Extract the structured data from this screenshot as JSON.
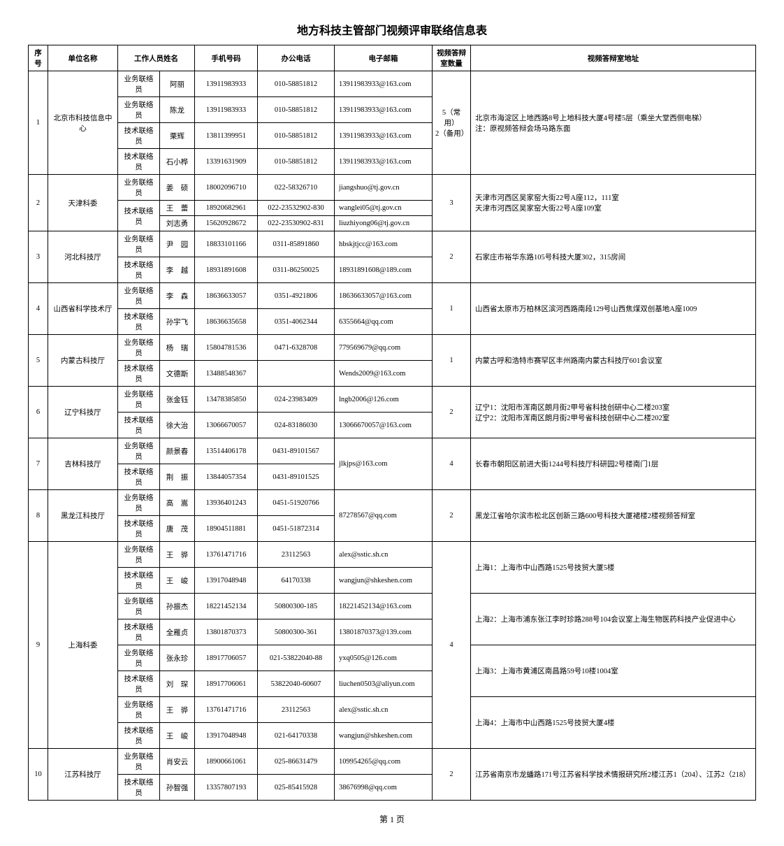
{
  "title": "地方科技主管部门视频评审联络信息表",
  "footer": "第 1 页",
  "columns": [
    "序号",
    "单位名称",
    "工作人员姓名",
    "",
    "手机号码",
    "办公电话",
    "电子邮箱",
    "视频答辩室数量",
    "视频答辩室地址"
  ],
  "col_role_sub": "",
  "rows": [
    {
      "seq": "1",
      "unit": "北京市科技信息中心",
      "qty": "5（常用）\n2（备用）",
      "addr": "北京市海淀区上地西路8号上地科技大厦4号楼5层（乘坐大堂西侧电梯）\n注：原视频答辩会场马路东面",
      "contacts": [
        {
          "role": "业务联络员",
          "name": "阿丽",
          "mobile": "13911983933",
          "phone": "010-58851812",
          "email": "13911983933@163.com"
        },
        {
          "role": "业务联络员",
          "name": "陈龙",
          "mobile": "13911983933",
          "phone": "010-58851812",
          "email": "13911983933@163.com"
        },
        {
          "role": "技术联络员",
          "name": "栗辉",
          "mobile": "13811399951",
          "phone": "010-58851812",
          "email": "13911983933@163.com"
        },
        {
          "role": "技术联络员",
          "name": "石小桦",
          "mobile": "13391631909",
          "phone": "010-58851812",
          "email": "13911983933@163.com"
        }
      ]
    },
    {
      "seq": "2",
      "unit": "天津科委",
      "qty": "3",
      "addr": "天津市河西区吴家窑大街22号A座112，111室\n天津市河西区吴家窑大街22号A座109室",
      "contacts": [
        {
          "role": "业务联络员",
          "name": "姜　硕",
          "mobile": "18002096710",
          "phone": "022-58326710",
          "email": "jiangshuo@tj.gov.cn"
        },
        {
          "role": "技术联络员",
          "name": "王　蕾",
          "mobile": "18920682961",
          "phone": "022-23532902-830",
          "email": "wanglei05@tj.gov.cn",
          "role_span": 2
        },
        {
          "role": "",
          "name": "刘志勇",
          "mobile": "15620928672",
          "phone": "022-23530902-831",
          "email": "liuzhiyong06@tj.gov.cn"
        }
      ]
    },
    {
      "seq": "3",
      "unit": "河北科技厅",
      "qty": "2",
      "addr": "石家庄市裕华东路105号科技大厦302，315房间",
      "contacts": [
        {
          "role": "业务联络员",
          "name": "尹　园",
          "mobile": "18833101166",
          "phone": "0311-85891860",
          "email": "hbskjtjcc@163.com"
        },
        {
          "role": "技术联络员",
          "name": "李　越",
          "mobile": "18931891608",
          "phone": "0311-86250025",
          "email": "18931891608@189.com"
        }
      ]
    },
    {
      "seq": "4",
      "unit": "山西省科学技术厅",
      "qty": "1",
      "addr": "山西省太原市万柏林区滨河西路南段129号山西焦煤双创基地A座1009",
      "contacts": [
        {
          "role": "业务联络员",
          "name": "李　森",
          "mobile": "18636633057",
          "phone": "0351-4921806",
          "email": "18636633057@163.com"
        },
        {
          "role": "技术联络员",
          "name": "孙宇飞",
          "mobile": "18636635658",
          "phone": "0351-4062344",
          "email": "6355664@qq.com"
        }
      ]
    },
    {
      "seq": "5",
      "unit": "内蒙古科技厅",
      "qty": "1",
      "addr": "内蒙古呼和浩特市赛罕区丰州路南内蒙古科技厅601会议室",
      "contacts": [
        {
          "role": "业务联络员",
          "name": "杨　瑞",
          "mobile": "15804781536",
          "phone": "0471-6328708",
          "email": "779569679@qq.com"
        },
        {
          "role": "技术联络员",
          "name": "文德斯",
          "mobile": "13488548367",
          "phone": "",
          "email": "Wends2009@163.com"
        }
      ]
    },
    {
      "seq": "6",
      "unit": "辽宁科技厅",
      "qty": "2",
      "addr": "辽宁1：沈阳市浑南区朗月街2甲号省科技创研中心二楼203室\n辽宁2：沈阳市浑南区朗月街2甲号省科技创研中心二楼202室",
      "contacts": [
        {
          "role": "业务联络员",
          "name": "张金钰",
          "mobile": "13478385850",
          "phone": "024-23983409",
          "email": "lngb2006@126.com"
        },
        {
          "role": "技术联络员",
          "name": "徐大治",
          "mobile": "13066670057",
          "phone": "024-83186030",
          "email": "13066670057@163.com"
        }
      ]
    },
    {
      "seq": "7",
      "unit": "吉林科技厅",
      "qty": "4",
      "addr": "长春市朝阳区前进大街1244号科技厅科研园2号楼南门1层",
      "contacts": [
        {
          "role": "业务联络员",
          "name": "颜景春",
          "mobile": "13514406178",
          "phone": "0431-89101567",
          "email": "jlkjps@163.com",
          "email_span": 2
        },
        {
          "role": "技术联络员",
          "name": "荆　振",
          "mobile": "13844057354",
          "phone": "0431-89101525",
          "email": ""
        }
      ]
    },
    {
      "seq": "8",
      "unit": "黑龙江科技厅",
      "qty": "2",
      "addr": "黑龙江省哈尔滨市松北区创新三路600号科技大厦裙楼2楼视频答辩室",
      "contacts": [
        {
          "role": "业务联络员",
          "name": "高　嵩",
          "mobile": "13936401243",
          "phone": "0451-51920766",
          "email": "87278567@qq.com",
          "email_span": 2
        },
        {
          "role": "技术联络员",
          "name": "唐　茂",
          "mobile": "18904511881",
          "phone": "0451-51872314",
          "email": ""
        }
      ]
    },
    {
      "seq": "9",
      "unit": "上海科委",
      "qty": "4",
      "addr_rows": [
        {
          "span": 2,
          "text": "上海1：上海市中山西路1525号技贸大厦5楼"
        },
        {
          "span": 2,
          "text": "上海2：上海市浦东张江李时珍路288号104会议室上海生物医药科技产业促进中心"
        },
        {
          "span": 2,
          "text": "上海3：上海市黄浦区南昌路59号10楼1004室"
        },
        {
          "span": 2,
          "text": "上海4：上海市中山西路1525号技贸大厦4楼"
        }
      ],
      "contacts": [
        {
          "role": "业务联络员",
          "name": "王　骅",
          "mobile": "13761471716",
          "phone": "23112563",
          "email": "alex@sstic.sh.cn"
        },
        {
          "role": "技术联络员",
          "name": "王　峻",
          "mobile": "13917048948",
          "phone": "64170338",
          "email": "wangjun@shkeshen.com"
        },
        {
          "role": "业务联络员",
          "name": "孙振杰",
          "mobile": "18221452134",
          "phone": "50800300-185",
          "email": "18221452134@163.com"
        },
        {
          "role": "技术联络员",
          "name": "全雁贞",
          "mobile": "13801870373",
          "phone": "50800300-361",
          "email": "13801870373@139.com"
        },
        {
          "role": "业务联络员",
          "name": "张永珍",
          "mobile": "18917706057",
          "phone": "021-53822040-88",
          "email": "yxq0505@126.com"
        },
        {
          "role": "技术联络员",
          "name": "刘　琛",
          "mobile": "18917706061",
          "phone": "53822040-60607",
          "email": "liuchen0503@aliyun.com"
        },
        {
          "role": "业务联络员",
          "name": "王　骅",
          "mobile": "13761471716",
          "phone": "23112563",
          "email": "alex@sstic.sh.cn"
        },
        {
          "role": "技术联络员",
          "name": "王　峻",
          "mobile": "13917048948",
          "phone": "021-64170338",
          "email": "wangjun@shkeshen.com"
        }
      ]
    },
    {
      "seq": "10",
      "unit": "江苏科技厅",
      "qty": "2",
      "addr": "江苏省南京市龙蟠路171号江苏省科学技术情报研究所2楼江苏1（204）、江苏2（218）",
      "contacts": [
        {
          "role": "业务联络员",
          "name": "肖安云",
          "mobile": "18900661061",
          "phone": "025-86631479",
          "email": "109954265@qq.com"
        },
        {
          "role": "技术联络员",
          "name": "孙智强",
          "mobile": "13357807193",
          "phone": "025-85415928",
          "email": "38676998@qq.com"
        }
      ]
    }
  ]
}
